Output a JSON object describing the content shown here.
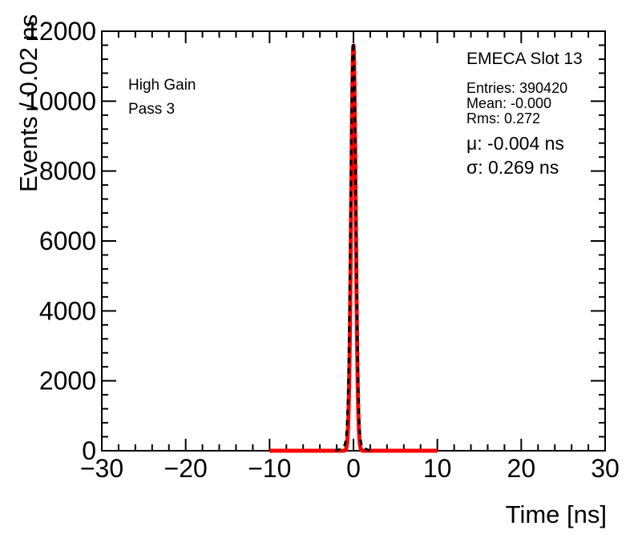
{
  "chart_data": {
    "type": "line",
    "title": "",
    "xlabel": "Time [ns]",
    "ylabel": "Events / 0.02 ns",
    "xlim": [
      -30,
      30
    ],
    "ylim": [
      0,
      12000
    ],
    "grid": false,
    "frame_color": "#000000",
    "background_color": "#ffffff",
    "x_major_ticks": [
      -30,
      -20,
      -10,
      0,
      10,
      20,
      30
    ],
    "x_tick_labels": [
      "−30",
      "−20",
      "−10",
      "0",
      "10",
      "20",
      "30"
    ],
    "x_minor_step": 2,
    "y_major_ticks": [
      0,
      2000,
      4000,
      6000,
      8000,
      10000,
      12000
    ],
    "y_tick_labels": [
      "0",
      "2000",
      "4000",
      "6000",
      "8000",
      "10000",
      "12000"
    ],
    "y_minor_step": 400,
    "peak": {
      "x": 0,
      "y_events": 11590
    },
    "series": [
      {
        "name": "time-histogram",
        "shape": "gaussian-curve",
        "color": "#000000",
        "line_style": "dashed",
        "line_width": 3,
        "mu": -0.03,
        "sigma": 0.3,
        "amplitude": 11680,
        "tail_fraction": 0.025,
        "tail_sigma": 0.8,
        "x_range": [
          -2.2,
          2.2
        ]
      },
      {
        "name": "gaussian-fit",
        "shape": "gaussian-curve",
        "color": "#ff0000",
        "line_style": "solid",
        "line_width": 5,
        "mu": -0.004,
        "sigma": 0.269,
        "amplitude": 11590,
        "tail_fraction": 0,
        "tail_sigma": 1,
        "x_range": [
          -10,
          10
        ]
      }
    ]
  },
  "annotations": {
    "gain_label": "High Gain",
    "pass_label": "Pass 3"
  },
  "stats_box": {
    "title": "EMECA Slot 13",
    "entries": "Entries: 390420",
    "mean": "Mean: -0.000",
    "rms": "Rms: 0.272",
    "fit_mu": "μ: -0.004 ns",
    "fit_sigma": "σ: 0.269 ns"
  }
}
